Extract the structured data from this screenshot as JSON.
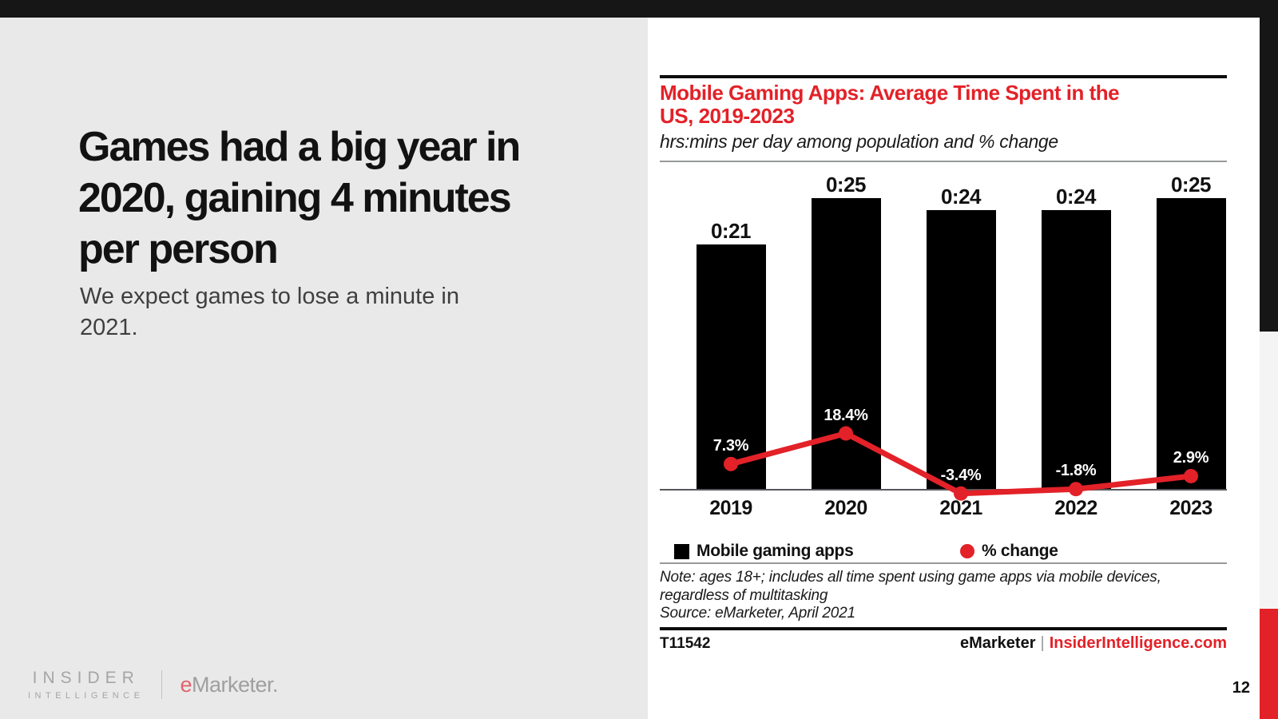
{
  "slide": {
    "headline_lines": [
      "Games had a big year in",
      "2020, gaining 4 minutes",
      "per person"
    ],
    "subtext_lines": [
      "We expect games to lose a minute in",
      "2021."
    ],
    "page_number": "12"
  },
  "brand": {
    "insider": "INSIDER",
    "intelligence": "INTELLIGENCE",
    "emarketer_e": "e",
    "emarketer_rest": "Marketer."
  },
  "chart": {
    "title_lines": [
      "Mobile Gaming Apps: Average Time Spent in the",
      "US, 2019-2023"
    ],
    "subtitle": "hrs:mins per day among population and % change",
    "note_lines": [
      "Note: ages 18+; includes all time spent using game apps via mobile devices,",
      "regardless of multitasking",
      "Source: eMarketer, April 2021"
    ],
    "footer_id": "T11542",
    "footer_brand_black": "eMarketer",
    "footer_separator": "|",
    "footer_brand_red": "InsiderIntelligence.com"
  },
  "chart_data": {
    "type": "bar",
    "combo": "bar+line",
    "title": "Mobile Gaming Apps: Average Time Spent in the US, 2019-2023",
    "subtitle": "hrs:mins per day among population and % change",
    "categories": [
      "2019",
      "2020",
      "2021",
      "2022",
      "2023"
    ],
    "series": [
      {
        "name": "Mobile gaming apps",
        "type": "bar",
        "unit": "hrs:mins per day",
        "values_minutes": [
          21,
          25,
          24,
          24,
          25
        ],
        "labels": [
          "0:21",
          "0:25",
          "0:24",
          "0:24",
          "0:25"
        ],
        "color": "#000000"
      },
      {
        "name": "% change",
        "type": "line",
        "unit": "percent",
        "values_percent": [
          7.3,
          18.4,
          -3.4,
          -1.8,
          2.9
        ],
        "labels": [
          "7.3%",
          "18.4%",
          "-3.4%",
          "-1.8%",
          "2.9%"
        ],
        "color": "#e32128"
      }
    ],
    "legend_position": "bottom",
    "grid": false,
    "accent_color": "#e32128"
  }
}
